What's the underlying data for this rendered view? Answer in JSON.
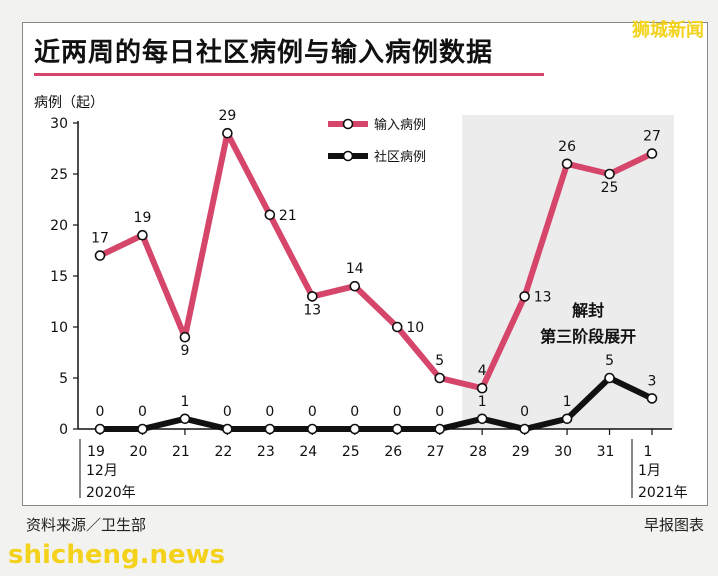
{
  "brand": {
    "watermark": "狮城新闻",
    "site": "shicheng.news"
  },
  "footer": {
    "source": "资料来源／卫生部",
    "credit": "早报图表"
  },
  "chart_data": {
    "type": "line",
    "title": "近两周的每日社区病例与输入病例数据",
    "ylabel": "病例（起）",
    "ylim": [
      0,
      30
    ],
    "yticks": [
      0,
      5,
      10,
      15,
      20,
      25,
      30
    ],
    "categories": [
      "19",
      "20",
      "21",
      "22",
      "23",
      "24",
      "25",
      "26",
      "27",
      "28",
      "29",
      "30",
      "31",
      "1"
    ],
    "xgroups": [
      {
        "label_line1": "12月",
        "label_line2": "2020年",
        "start": "19"
      },
      {
        "label_line1": "1月",
        "label_line2": "2021年",
        "start": "1"
      }
    ],
    "series": [
      {
        "name": "输入病例",
        "color": "#d6456a",
        "values": [
          17,
          19,
          9,
          29,
          21,
          13,
          14,
          10,
          5,
          4,
          13,
          26,
          25,
          27
        ]
      },
      {
        "name": "社区病例",
        "color": "#111111",
        "values": [
          0,
          0,
          1,
          0,
          0,
          0,
          0,
          0,
          0,
          1,
          0,
          1,
          5,
          3
        ]
      }
    ],
    "annotation": {
      "line1": "解封",
      "line2": "第三阶段展开",
      "shaded_from": "28",
      "shaded_to": "1"
    },
    "legend": "top-center"
  }
}
